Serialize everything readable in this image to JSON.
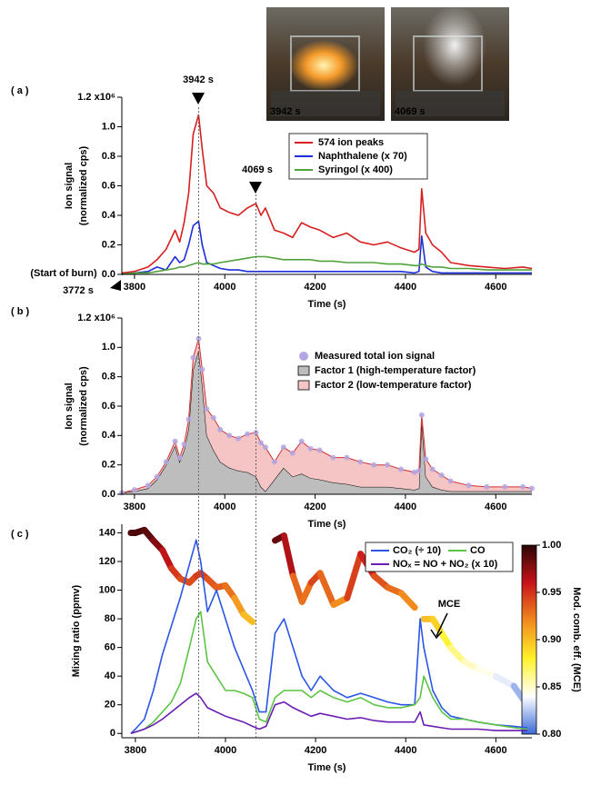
{
  "chart_data": [
    {
      "type": "line",
      "panel_label": "( a )",
      "xlabel": "Time (s)",
      "ylabel": [
        "Ion signal",
        "(normalized cps)"
      ],
      "x": [
        3772,
        3800,
        3830,
        3850,
        3870,
        3890,
        3900,
        3910,
        3920,
        3930,
        3942,
        3950,
        3960,
        3975,
        3990,
        4010,
        4030,
        4050,
        4069,
        4080,
        4090,
        4110,
        4130,
        4150,
        4170,
        4190,
        4210,
        4240,
        4270,
        4300,
        4330,
        4360,
        4390,
        4420,
        4430,
        4436,
        4445,
        4460,
        4480,
        4500,
        4540,
        4580,
        4620,
        4660,
        4680
      ],
      "xlim": [
        3772,
        4680
      ],
      "xticks": [
        3800,
        4000,
        4200,
        4400,
        4600
      ],
      "ylim": [
        0,
        1.2
      ],
      "yticks": [
        {
          "value": 0,
          "label": "0.0"
        },
        {
          "value": 0.2,
          "label": "0.2"
        },
        {
          "value": 0.4,
          "label": "0.4"
        },
        {
          "value": 0.6,
          "label": "0.6"
        },
        {
          "value": 0.8,
          "label": "0.8"
        },
        {
          "value": 1,
          "label": "1.0"
        },
        {
          "value": 1.2,
          "label": "1.2 x10⁶"
        }
      ],
      "series": [
        {
          "name": "574 ion peaks",
          "color": "#d81e1e",
          "values": [
            0.01,
            0.02,
            0.05,
            0.1,
            0.17,
            0.3,
            0.22,
            0.35,
            0.55,
            0.95,
            1.08,
            0.85,
            0.6,
            0.55,
            0.45,
            0.42,
            0.4,
            0.45,
            0.48,
            0.4,
            0.45,
            0.3,
            0.28,
            0.25,
            0.35,
            0.32,
            0.3,
            0.25,
            0.28,
            0.22,
            0.2,
            0.22,
            0.18,
            0.15,
            0.17,
            0.58,
            0.28,
            0.2,
            0.15,
            0.08,
            0.06,
            0.05,
            0.04,
            0.05,
            0.04
          ]
        },
        {
          "name": "Naphthalene (x 70)",
          "color": "#1c2fd6",
          "values": [
            0.0,
            0.01,
            0.02,
            0.05,
            0.03,
            0.12,
            0.08,
            0.1,
            0.2,
            0.33,
            0.36,
            0.2,
            0.08,
            0.06,
            0.04,
            0.03,
            0.03,
            0.02,
            0.02,
            0.02,
            0.02,
            0.02,
            0.02,
            0.02,
            0.02,
            0.02,
            0.02,
            0.02,
            0.02,
            0.02,
            0.02,
            0.02,
            0.02,
            0.01,
            0.02,
            0.26,
            0.05,
            0.02,
            0.01,
            0.01,
            0.01,
            0.01,
            0.01,
            0.01,
            0.01
          ]
        },
        {
          "name": "Syringol (x 400)",
          "color": "#4fa33a",
          "values": [
            0,
            0.01,
            0.01,
            0.02,
            0.03,
            0.04,
            0.05,
            0.05,
            0.06,
            0.07,
            0.08,
            0.07,
            0.07,
            0.07,
            0.08,
            0.09,
            0.1,
            0.11,
            0.12,
            0.12,
            0.12,
            0.11,
            0.1,
            0.1,
            0.1,
            0.1,
            0.09,
            0.09,
            0.08,
            0.08,
            0.08,
            0.07,
            0.07,
            0.06,
            0.06,
            0.07,
            0.06,
            0.05,
            0.05,
            0.04,
            0.04,
            0.03,
            0.03,
            0.03,
            0.03
          ]
        }
      ],
      "vlines": [
        3942,
        4069
      ],
      "annotations": [
        "3942 s",
        "4069 s",
        "(Start of burn)",
        "3772 s"
      ],
      "photo_labels": [
        "3942 s",
        "4069 s"
      ]
    },
    {
      "type": "stacked-area",
      "panel_label": "( b )",
      "xlabel": "Time (s)",
      "ylabel": [
        "Ion signal",
        "(normalized cps)"
      ],
      "x": [
        3772,
        3800,
        3830,
        3850,
        3870,
        3890,
        3900,
        3910,
        3920,
        3930,
        3942,
        3950,
        3960,
        3975,
        3990,
        4010,
        4030,
        4050,
        4069,
        4080,
        4090,
        4110,
        4130,
        4150,
        4170,
        4190,
        4210,
        4240,
        4270,
        4300,
        4330,
        4360,
        4390,
        4420,
        4430,
        4436,
        4445,
        4460,
        4480,
        4500,
        4540,
        4580,
        4620,
        4660,
        4680
      ],
      "xlim": [
        3772,
        4680
      ],
      "xticks": [
        3800,
        4000,
        4200,
        4400,
        4600
      ],
      "ylim": [
        0,
        1.2
      ],
      "yticks": [
        {
          "value": 0,
          "label": "0.0"
        },
        {
          "value": 0.2,
          "label": "0.2"
        },
        {
          "value": 0.4,
          "label": "0.4"
        },
        {
          "value": 0.6,
          "label": "0.6"
        },
        {
          "value": 0.8,
          "label": "0.8"
        },
        {
          "value": 1,
          "label": "1.0"
        },
        {
          "value": 1.2,
          "label": "1.2 x10⁶"
        }
      ],
      "points": {
        "name": "Measured total ion signal",
        "color": "#b3a6e3",
        "values": [
          0.01,
          0.03,
          0.06,
          0.12,
          0.22,
          0.36,
          0.25,
          0.34,
          0.51,
          0.93,
          1.06,
          0.85,
          0.58,
          0.52,
          0.44,
          0.4,
          0.38,
          0.41,
          0.42,
          0.35,
          0.32,
          0.22,
          0.32,
          0.28,
          0.36,
          0.31,
          0.3,
          0.25,
          0.25,
          0.22,
          0.2,
          0.2,
          0.17,
          0.15,
          0.16,
          0.54,
          0.24,
          0.17,
          0.13,
          0.09,
          0.06,
          0.05,
          0.05,
          0.05,
          0.04
        ]
      },
      "series": [
        {
          "name": "Factor 1 (high-temperature factor)",
          "color": "#bdbdbd",
          "values": [
            0.01,
            0.02,
            0.04,
            0.1,
            0.2,
            0.33,
            0.22,
            0.3,
            0.45,
            0.85,
            0.98,
            0.75,
            0.4,
            0.3,
            0.22,
            0.18,
            0.16,
            0.15,
            0.12,
            0.05,
            0.02,
            0.1,
            0.18,
            0.12,
            0.14,
            0.11,
            0.1,
            0.08,
            0.07,
            0.05,
            0.05,
            0.05,
            0.04,
            0.03,
            0.04,
            0.5,
            0.12,
            0.05,
            0.03,
            0.02,
            0.02,
            0.02,
            0.02,
            0.02,
            0.02
          ]
        },
        {
          "name": "Factor 2 (low-temperature factor)",
          "color": "#f5c4c4",
          "values": [
            0,
            0.01,
            0.02,
            0.02,
            0.02,
            0.03,
            0.03,
            0.04,
            0.06,
            0.08,
            0.08,
            0.1,
            0.18,
            0.22,
            0.22,
            0.22,
            0.22,
            0.26,
            0.3,
            0.3,
            0.3,
            0.12,
            0.14,
            0.16,
            0.22,
            0.2,
            0.2,
            0.17,
            0.18,
            0.17,
            0.15,
            0.15,
            0.13,
            0.12,
            0.12,
            0.04,
            0.12,
            0.12,
            0.1,
            0.07,
            0.04,
            0.03,
            0.03,
            0.03,
            0.02
          ]
        }
      ]
    },
    {
      "type": "line",
      "panel_label": "( c )",
      "xlabel": "Time (s)",
      "ylabel": [
        "Mixing ratio (ppmv)"
      ],
      "x": [
        3790,
        3800,
        3820,
        3840,
        3860,
        3880,
        3900,
        3920,
        3935,
        3945,
        3960,
        3980,
        4000,
        4020,
        4040,
        4060,
        4075,
        4090,
        4110,
        4130,
        4150,
        4170,
        4190,
        4210,
        4240,
        4270,
        4300,
        4330,
        4360,
        4390,
        4420,
        4432,
        4440,
        4460,
        4480,
        4500,
        4530,
        4560,
        4600,
        4640,
        4670
      ],
      "xlim": [
        3770,
        4680
      ],
      "xticks": [
        3800,
        4000,
        4200,
        4400,
        4600
      ],
      "ylim": [
        -3,
        146
      ],
      "yticks": [
        0,
        20,
        40,
        60,
        80,
        100,
        120,
        140
      ],
      "series": [
        {
          "name": "CO₂ (÷ 10)",
          "color": "#2a55e6",
          "values": [
            0,
            3,
            10,
            30,
            55,
            75,
            95,
            118,
            135,
            120,
            85,
            100,
            80,
            60,
            45,
            30,
            15,
            15,
            70,
            80,
            60,
            40,
            30,
            40,
            30,
            25,
            28,
            25,
            22,
            20,
            20,
            80,
            60,
            30,
            18,
            12,
            10,
            8,
            6,
            5,
            4
          ]
        },
        {
          "name": "CO",
          "color": "#5cc444",
          "values": [
            0,
            1,
            3,
            8,
            15,
            22,
            35,
            60,
            80,
            85,
            50,
            40,
            30,
            30,
            28,
            25,
            10,
            8,
            25,
            30,
            30,
            30,
            25,
            30,
            25,
            22,
            25,
            20,
            18,
            18,
            20,
            25,
            40,
            25,
            15,
            10,
            10,
            8,
            6,
            4,
            3
          ]
        },
        {
          "name": "NOₓ = NO + NO₂ (x 10)",
          "color": "#6a1db3",
          "values": [
            0,
            1,
            3,
            6,
            10,
            15,
            20,
            25,
            28,
            25,
            18,
            15,
            12,
            10,
            8,
            5,
            3,
            5,
            20,
            22,
            18,
            15,
            12,
            14,
            12,
            10,
            11,
            9,
            8,
            8,
            8,
            15,
            6,
            5,
            4,
            3,
            3,
            3,
            2,
            2,
            2
          ]
        }
      ],
      "mce": {
        "axis": "y2",
        "values": [
          0.99,
          0.99,
          0.993,
          0.982,
          0.972,
          0.953,
          0.942,
          0.938,
          0.945,
          0.948,
          0.942,
          0.933,
          0.935,
          0.922,
          0.905,
          0.897,
          null,
          null,
          0.982,
          0.987,
          0.945,
          0.918,
          0.938,
          0.948,
          0.915,
          0.922,
          0.968,
          0.945,
          0.933,
          0.927,
          0.912,
          null,
          0.9,
          0.9,
          0.885,
          0.87,
          0.855,
          0.848,
          0.84,
          0.83,
          0.81
        ]
      },
      "y2lim": [
        0.776,
        0.999
      ],
      "clim": [
        0.8,
        1.0
      ],
      "cticks": [
        {
          "value": 0.8,
          "label": "0.80"
        },
        {
          "value": 0.85,
          "label": "0.85"
        },
        {
          "value": 0.9,
          "label": "0.90"
        },
        {
          "value": 0.95,
          "label": "0.95"
        },
        {
          "value": 1,
          "label": "1.00"
        }
      ],
      "colormap": [
        "#3a6ad8",
        "#ffffff",
        "#fff22a",
        "#f28a1e",
        "#c8141a",
        "#2a0404"
      ],
      "clabel": "Mod. comb. eff. (MCE)",
      "annotation": "MCE"
    }
  ]
}
